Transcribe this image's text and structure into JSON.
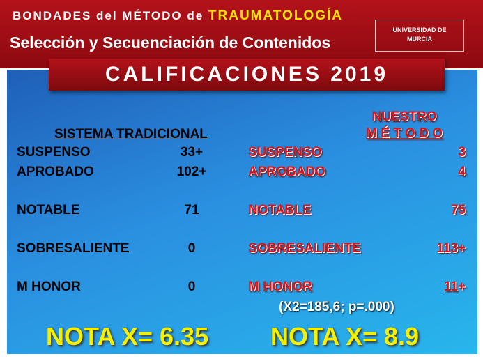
{
  "header": {
    "line1": "BONDADES del MÉTODO de",
    "line1_highlight": "TRAUMATOLOGÍA",
    "line2": "Selección y Secuenciación de Contenidos",
    "logo": [
      "UNIVERSIDAD DE",
      "MURCIA"
    ]
  },
  "title": "CALIFICACIONES 2019",
  "left": {
    "heading": "SISTEMA TRADICIONAL",
    "rows": [
      [
        "SUSPENSO",
        "33+"
      ],
      [
        "APROBADO",
        "102+"
      ],
      [
        "NOTABLE",
        "71"
      ],
      [
        "SOBRESALIENTE",
        "0"
      ],
      [
        "M HONOR",
        "0"
      ]
    ]
  },
  "right": {
    "heading": [
      "NUESTRO",
      "M É T O D O"
    ],
    "rows": [
      [
        "SUSPENSO",
        "3"
      ],
      [
        "APROBADO",
        "4"
      ],
      [
        "NOTABLE",
        "75"
      ],
      [
        "SOBRESALIENTE",
        "113+"
      ],
      [
        "M HONOR",
        "11+"
      ]
    ]
  },
  "stat": "(X2=185,6; p=.000)",
  "means": [
    "NOTA X= 6.35",
    "NOTA X= 8.9"
  ]
}
